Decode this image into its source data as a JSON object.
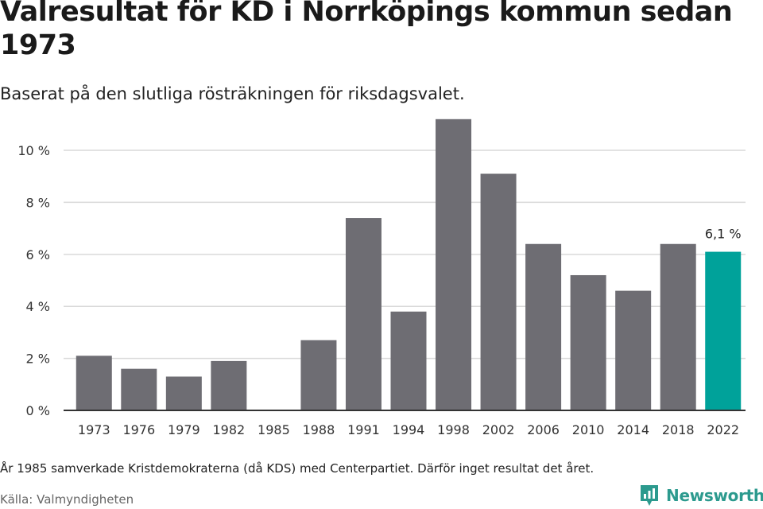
{
  "title": "Valresultat för KD i Norrköpings kommun sedan 1973",
  "subtitle": "Baserat på den slutliga rösträkningen för riksdagsvalet.",
  "note": "År 1985 samverkade Kristdemokraterna (då KDS) med Centerpartiet. Därför inget resultat det året.",
  "source": "Källa: Valmyndigheten",
  "brand": "Newsworthy",
  "colors": {
    "bar": "#6e6d73",
    "highlight": "#00a29a",
    "grid": "#d9d9d9",
    "axis": "#333333",
    "brand": "#2c9a8e"
  },
  "chart_data": {
    "type": "bar",
    "categories": [
      "1973",
      "1976",
      "1979",
      "1982",
      "1985",
      "1988",
      "1991",
      "1994",
      "1998",
      "2002",
      "2006",
      "2010",
      "2014",
      "2018",
      "2022"
    ],
    "values": [
      2.1,
      1.6,
      1.3,
      1.9,
      null,
      2.7,
      7.4,
      3.8,
      11.2,
      9.1,
      6.4,
      5.2,
      4.6,
      6.4,
      6.1
    ],
    "highlight_index": 14,
    "highlight_label": "6,1 %",
    "ylim": [
      0,
      11.5
    ],
    "yticks": [
      0,
      2,
      4,
      6,
      8,
      10
    ],
    "ytick_labels": [
      "0 %",
      "2 %",
      "4 %",
      "6 %",
      "8 %",
      "10 %"
    ],
    "grid": true,
    "legend": "none"
  }
}
